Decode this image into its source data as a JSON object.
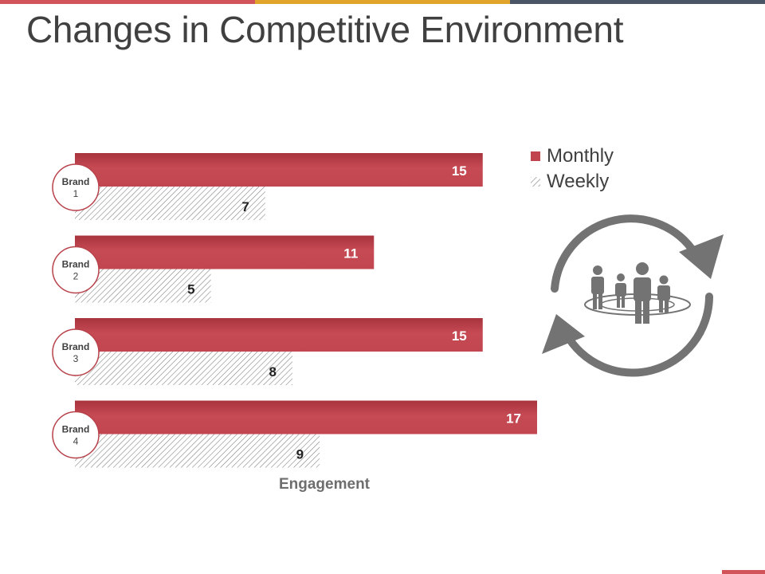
{
  "title": "Changes in Competitive Environment",
  "colors": {
    "monthly": "#c0434d",
    "monthly_dark": "#a3323c",
    "weekly_hatch": "#7a7a7a",
    "text": "#404040",
    "icon": "#737373",
    "topbar": [
      "#d0545a",
      "#e0a42b",
      "#4a5566"
    ],
    "corner": "#d0545a"
  },
  "legend": {
    "monthly": "Monthly",
    "weekly": "Weekly"
  },
  "icons": {
    "cycle": "refresh-cycle-icon",
    "people": "people-group-icon"
  },
  "chart_data": {
    "type": "bar",
    "orientation": "horizontal",
    "categories": [
      "Brand 1",
      "Brand 2",
      "Brand 3",
      "Brand 4"
    ],
    "category_lines": [
      [
        "Brand",
        "1"
      ],
      [
        "Brand",
        "2"
      ],
      [
        "Brand",
        "3"
      ],
      [
        "Brand",
        "4"
      ]
    ],
    "series": [
      {
        "name": "Monthly",
        "values": [
          15,
          11,
          15,
          17
        ]
      },
      {
        "name": "Weekly",
        "values": [
          7,
          5,
          8,
          9
        ]
      }
    ],
    "title": "",
    "xlabel": "Engagement",
    "ylabel": "",
    "xlim": [
      0,
      17
    ],
    "grid": false,
    "legend_position": "top-right"
  }
}
